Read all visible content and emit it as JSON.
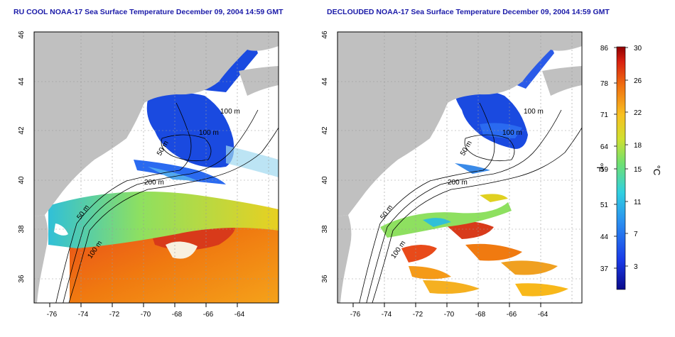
{
  "panels": [
    {
      "title": "RU COOL NOAA-17 Sea Surface Temperature December 09, 2004 14:59 GMT",
      "contour_labels": [
        "100 m",
        "100 m",
        "200 m",
        "50 m",
        "50 m",
        "100 m"
      ]
    },
    {
      "title": "DECLOUDED NOAA-17 Sea Surface Temperature December 09, 2004 14:59 GMT",
      "contour_labels": [
        "100 m",
        "100 m",
        "200 m",
        "50 m",
        "50 m",
        "100 m"
      ]
    }
  ],
  "axes": {
    "lon_ticks": [
      "-76",
      "-74",
      "-72",
      "-70",
      "-68",
      "-66",
      "-64"
    ],
    "lat_ticks": [
      "36",
      "38",
      "40",
      "42",
      "44",
      "46"
    ]
  },
  "colorbar": {
    "fahrenheit_ticks": [
      "86",
      "78",
      "71",
      "64",
      "59",
      "51",
      "44",
      "37"
    ],
    "celsius_ticks": [
      "30",
      "26",
      "22",
      "18",
      "15",
      "11",
      "7",
      "3"
    ],
    "fahrenheit_unit": "°F",
    "celsius_unit": "°C"
  },
  "colors": {
    "land": "#c0c0c0",
    "title": "#1a1aa8",
    "cold": "#1a3ad8",
    "warm": "#e05020"
  }
}
